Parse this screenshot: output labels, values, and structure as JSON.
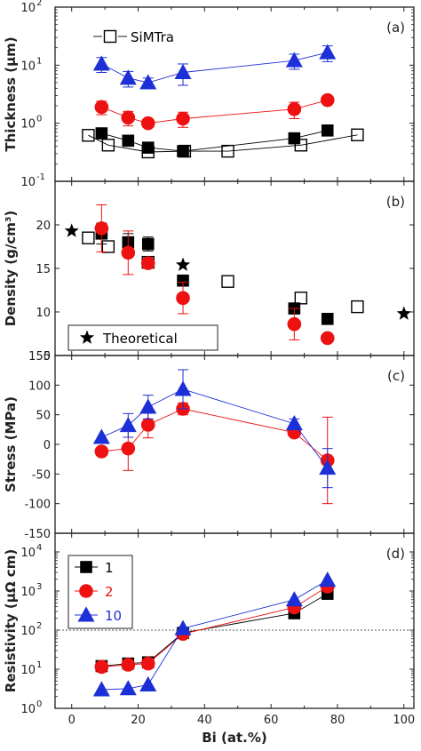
{
  "colors": {
    "s1": "#000000",
    "s2": "#ee1111",
    "s10": "#1d2fd6",
    "simtra": "#000000",
    "frame": "#222222",
    "refline": "#555555"
  },
  "chart_data": [
    {
      "type": "scatter",
      "panel_label": "(a)",
      "ylabel": "Thickness (µm)",
      "yscale": "log",
      "ylim": [
        0.1,
        100
      ],
      "yticks": [
        {
          "base": "10",
          "exp": "-1",
          "v": 0.1
        },
        {
          "base": "10",
          "exp": "0",
          "v": 1
        },
        {
          "base": "10",
          "exp": "1",
          "v": 10
        },
        {
          "base": "10",
          "exp": "2",
          "v": 100
        }
      ],
      "legend": [
        {
          "name": "SiMTra",
          "marker": "square-open"
        }
      ],
      "legend_placement": "top-left",
      "series": [
        {
          "key": "simtra",
          "marker": "square-open",
          "line": false,
          "x": [
            5,
            11,
            23,
            34,
            47,
            69,
            86
          ],
          "y": [
            0.62,
            0.42,
            0.32,
            0.33,
            0.33,
            0.42,
            0.63
          ]
        },
        {
          "key": "simtra_line",
          "marker": "none",
          "line": true,
          "x": [
            5,
            11,
            23,
            34,
            47,
            69,
            86
          ],
          "y": [
            0.62,
            0.42,
            0.32,
            0.33,
            0.33,
            0.42,
            0.63
          ]
        },
        {
          "key": "s1",
          "marker": "square",
          "line": true,
          "x": [
            9,
            17,
            23,
            33.5,
            67,
            77
          ],
          "y": [
            0.67,
            0.5,
            0.38,
            0.33,
            0.55,
            0.75
          ]
        },
        {
          "key": "s2",
          "marker": "circle",
          "line": true,
          "x": [
            9,
            17,
            23,
            33.5,
            67,
            77
          ],
          "y": [
            1.9,
            1.25,
            1.0,
            1.2,
            1.75,
            2.5
          ],
          "yerr": [
            0.5,
            0.35,
            0.15,
            0.35,
            0.55,
            0.3
          ]
        },
        {
          "key": "s10",
          "marker": "triangle",
          "line": true,
          "x": [
            9,
            17,
            23,
            33.5,
            67,
            77
          ],
          "y": [
            10.5,
            6.0,
            5.0,
            7.5,
            12.0,
            16.5
          ],
          "yerr": [
            3.0,
            1.8,
            1.0,
            3.0,
            3.5,
            5.0
          ]
        }
      ]
    },
    {
      "type": "scatter",
      "panel_label": "(b)",
      "ylabel": "Density (g/cm³)",
      "ylim": [
        5,
        25
      ],
      "yticks": [
        5,
        10,
        15,
        20
      ],
      "legend": [
        {
          "name": "Theoretical",
          "marker": "star"
        }
      ],
      "legend_placement": "bottom-left",
      "series": [
        {
          "key": "theoretical",
          "marker": "star",
          "line": false,
          "x": [
            0,
            33.5,
            100
          ],
          "y": [
            19.3,
            15.4,
            9.8
          ]
        },
        {
          "key": "simtra",
          "marker": "square-open",
          "line": false,
          "x": [
            5,
            11,
            23,
            47,
            69,
            86
          ],
          "y": [
            18.5,
            17.5,
            15.7,
            13.5,
            11.6,
            10.6
          ]
        },
        {
          "key": "s1",
          "marker": "square",
          "line": false,
          "x": [
            9,
            17,
            23,
            33.5,
            67,
            77
          ],
          "y": [
            19.0,
            18.0,
            17.8,
            13.6,
            10.4,
            9.2
          ],
          "yerr": [
            1.2,
            1.0,
            0.8,
            0.6,
            0.5,
            0.3
          ]
        },
        {
          "key": "s2",
          "marker": "circle",
          "line": false,
          "x": [
            9,
            17,
            23,
            33.5,
            67,
            77
          ],
          "y": [
            19.6,
            16.8,
            15.6,
            11.6,
            8.6,
            7.0
          ],
          "yerr": [
            2.7,
            2.5,
            0.6,
            1.8,
            1.8,
            0.3
          ]
        }
      ]
    },
    {
      "type": "scatter",
      "panel_label": "(c)",
      "ylabel": "Stress (MPa)",
      "ylim": [
        -150,
        150
      ],
      "yticks": [
        -150,
        -100,
        -50,
        0,
        50,
        100,
        150
      ],
      "series": [
        {
          "key": "s2",
          "marker": "circle",
          "line": true,
          "x": [
            9,
            17,
            23,
            33.5,
            67,
            77
          ],
          "y": [
            -12,
            -7,
            33,
            60,
            20,
            -27
          ],
          "yerr": [
            0,
            37,
            22,
            10,
            5,
            73
          ]
        },
        {
          "key": "s10",
          "marker": "triangle",
          "line": true,
          "x": [
            9,
            17,
            23,
            33.5,
            67,
            77
          ],
          "y": [
            12,
            32,
            63,
            93,
            35,
            -40
          ],
          "yerr": [
            0,
            20,
            20,
            33,
            8,
            33
          ]
        }
      ]
    },
    {
      "type": "line",
      "panel_label": "(d)",
      "ylabel": "Resistivity (µΩ cm)",
      "yscale": "log",
      "ylim": [
        1,
        30000
      ],
      "yticks": [
        {
          "base": "10",
          "exp": "0",
          "v": 1
        },
        {
          "base": "10",
          "exp": "1",
          "v": 10
        },
        {
          "base": "10",
          "exp": "2",
          "v": 100
        },
        {
          "base": "10",
          "exp": "3",
          "v": 1000
        },
        {
          "base": "10",
          "exp": "4",
          "v": 10000
        }
      ],
      "reference_line": 100,
      "legend": [
        {
          "name": "1",
          "key": "s1",
          "marker": "square"
        },
        {
          "name": "2",
          "key": "s2",
          "marker": "circle"
        },
        {
          "name": "10",
          "key": "s10",
          "marker": "triangle"
        }
      ],
      "legend_placement": "top-left",
      "series": [
        {
          "key": "s1",
          "marker": "square",
          "line": true,
          "x": [
            9,
            17,
            23,
            33.5,
            67,
            77
          ],
          "y": [
            12,
            14,
            15,
            85,
            270,
            850
          ]
        },
        {
          "key": "s2",
          "marker": "circle",
          "line": true,
          "x": [
            9,
            17,
            23,
            33.5,
            67,
            77
          ],
          "y": [
            11.5,
            13,
            14,
            80,
            380,
            1300
          ]
        },
        {
          "key": "s10",
          "marker": "triangle",
          "line": true,
          "x": [
            9,
            17,
            23,
            33.5,
            67,
            77
          ],
          "y": [
            3,
            3.2,
            4,
            110,
            600,
            1900
          ]
        }
      ]
    }
  ],
  "xaxis": {
    "label": "Bi (at.%)",
    "lim": [
      -5,
      103
    ],
    "ticks": [
      0,
      20,
      40,
      60,
      80,
      100
    ]
  }
}
